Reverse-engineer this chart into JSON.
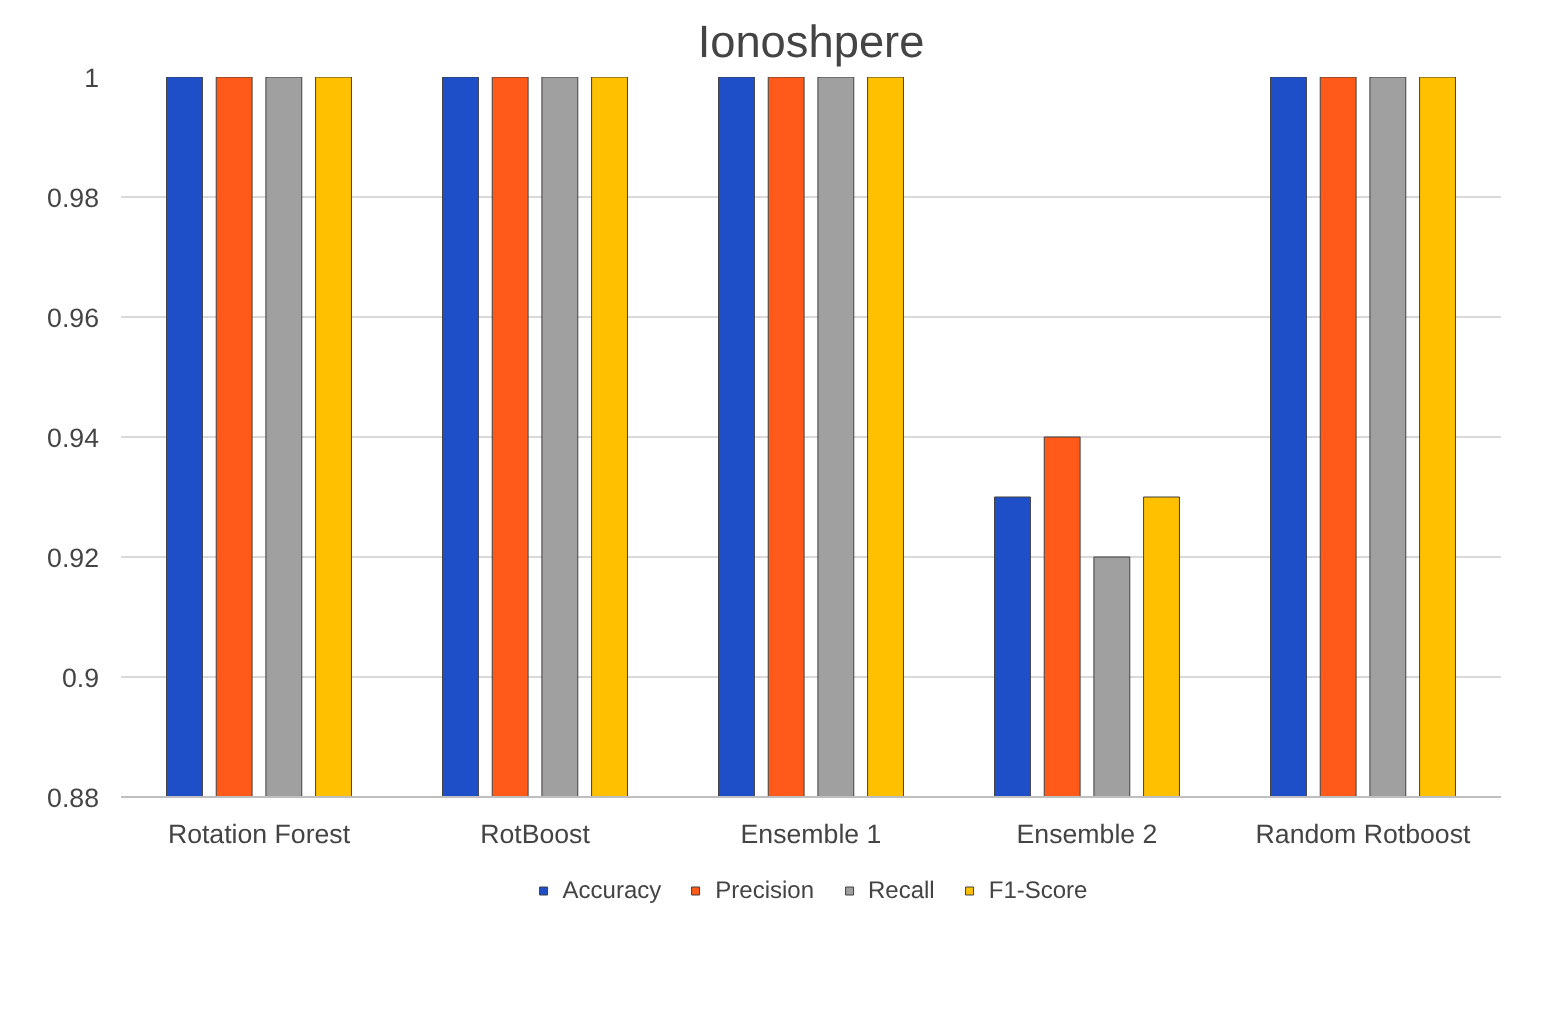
{
  "chart_data": {
    "type": "bar",
    "title": "Ionoshpere",
    "categories": [
      "Rotation Forest",
      "RotBoost",
      "Ensemble 1",
      "Ensemble 2",
      "Random Rotboost"
    ],
    "series": [
      {
        "name": "Accuracy",
        "color": "#1f4fc8",
        "values": [
          1,
          1,
          1,
          0.93,
          1
        ]
      },
      {
        "name": "Precision",
        "color": "#ff5a1a",
        "values": [
          1,
          1,
          1,
          0.94,
          1
        ]
      },
      {
        "name": "Recall",
        "color": "#a0a0a0",
        "values": [
          1,
          1,
          1,
          0.92,
          1
        ]
      },
      {
        "name": "F1-Score",
        "color": "#ffc000",
        "values": [
          1,
          1,
          1,
          0.93,
          1
        ]
      }
    ],
    "ylim": [
      0.88,
      1.0
    ],
    "yticks": [
      {
        "value": 0.88,
        "label": "0.88"
      },
      {
        "value": 0.9,
        "label": "0.9"
      },
      {
        "value": 0.92,
        "label": "0.92"
      },
      {
        "value": 0.94,
        "label": "0.94"
      },
      {
        "value": 0.96,
        "label": "0.96"
      },
      {
        "value": 0.98,
        "label": "0.98"
      },
      {
        "value": 1.0,
        "label": "1"
      }
    ],
    "grid": "y",
    "legend": "bottom"
  }
}
